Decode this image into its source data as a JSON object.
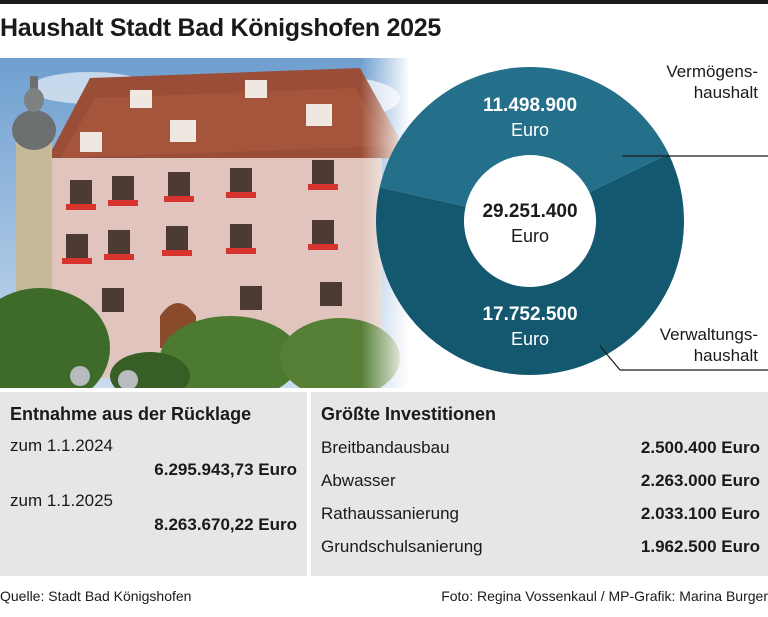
{
  "title": "Haushalt Stadt Bad Königshofen 2025",
  "colors": {
    "primary_segment": "#246f89",
    "secondary_segment": "#14586f",
    "panel_bg": "#e6e6e6"
  },
  "chart_data": {
    "type": "pie",
    "title": "Haushalt Stadt Bad Königshofen 2025",
    "total": {
      "value": "29.251.400",
      "unit": "Euro"
    },
    "slices": [
      {
        "label_line1": "Vermögens-",
        "label_line2": "haushalt",
        "value_text": "11.498.900",
        "unit": "Euro",
        "value": 11498900,
        "color": "#246f89"
      },
      {
        "label_line1": "Verwaltungs-",
        "label_line2": "haushalt",
        "value_text": "17.752.500",
        "unit": "Euro",
        "value": 17752500,
        "color": "#14586f"
      }
    ]
  },
  "reserve": {
    "heading": "Entnahme aus der Rücklage",
    "items": [
      {
        "date": "zum 1.1.2024",
        "value": "6.295.943,73 Euro"
      },
      {
        "date": "zum 1.1.2025",
        "value": "8.263.670,22 Euro"
      }
    ]
  },
  "investments": {
    "heading": "Größte Investitionen",
    "items": [
      {
        "name": "Breitbandausbau",
        "value": "2.500.400 Euro"
      },
      {
        "name": "Abwasser",
        "value": "2.263.000 Euro"
      },
      {
        "name": "Rathaussanierung",
        "value": "2.033.100 Euro"
      },
      {
        "name": "Grundschulsanierung",
        "value": "1.962.500 Euro"
      }
    ]
  },
  "footer": {
    "source": "Quelle: Stadt Bad Königshofen",
    "credit": "Foto: Regina Vossenkaul / MP-Grafik: Marina Burger"
  }
}
